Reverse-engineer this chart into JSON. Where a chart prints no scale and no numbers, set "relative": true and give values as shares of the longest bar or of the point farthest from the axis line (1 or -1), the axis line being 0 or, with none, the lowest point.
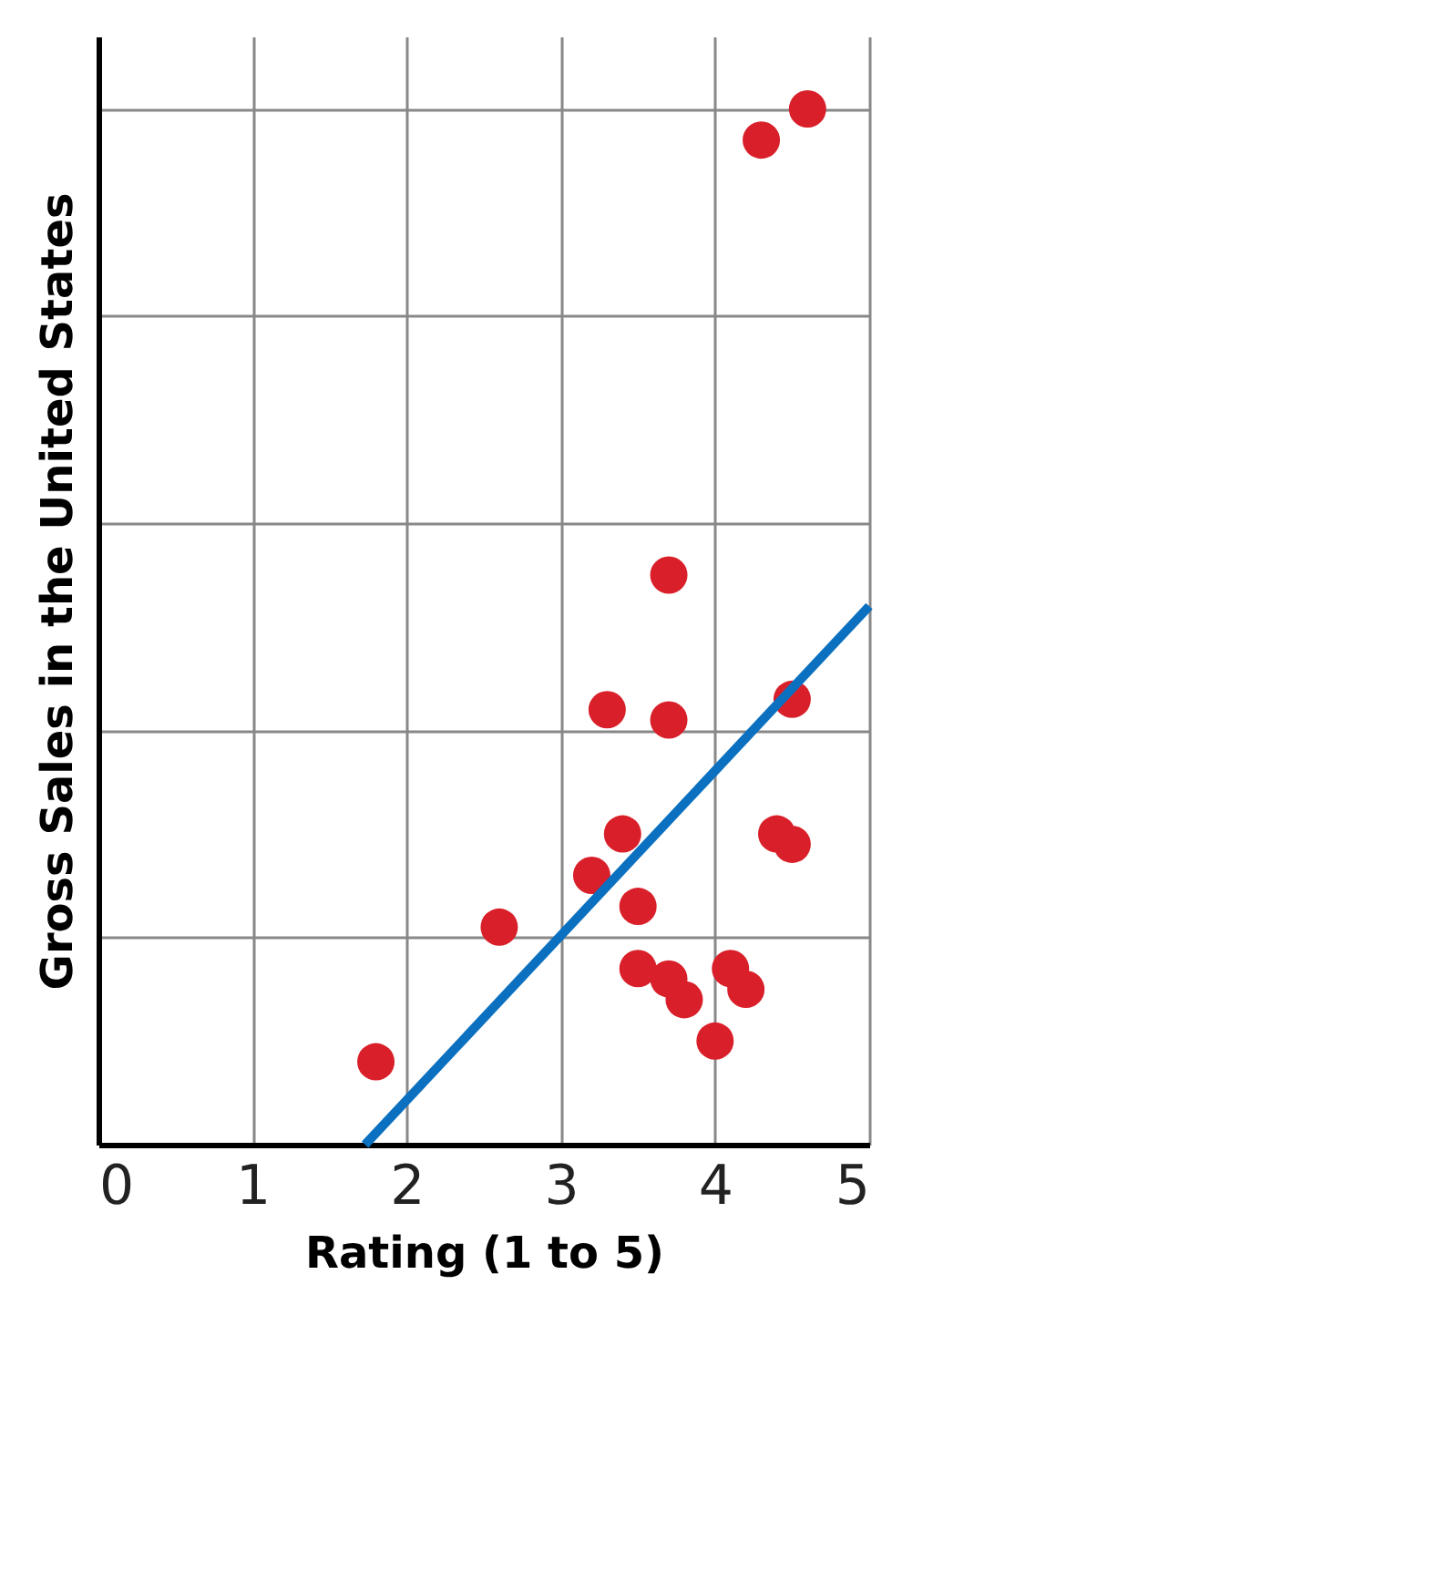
{
  "chart_data": {
    "type": "scatter",
    "relative": true,
    "xlabel": "Rating (1 to 5)",
    "ylabel": "Gross Sales in the United States",
    "xlim": [
      0,
      5
    ],
    "xticks": [
      0,
      1,
      2,
      3,
      4,
      5
    ],
    "grid": true,
    "series": [
      {
        "type": "scatter",
        "marker": "circle",
        "color": "#d9202a",
        "x": [
          1.8,
          2.6,
          3.2,
          3.4,
          3.3,
          3.5,
          3.5,
          3.7,
          3.7,
          3.7,
          3.8,
          4.0,
          4.1,
          4.2,
          4.4,
          4.5,
          4.5,
          4.3,
          4.6
        ],
        "values": [
          0.08,
          0.21,
          0.26,
          0.3,
          0.42,
          0.23,
          0.17,
          0.55,
          0.41,
          0.16,
          0.14,
          0.1,
          0.17,
          0.15,
          0.3,
          0.29,
          0.43,
          0.97,
          1.0
        ]
      },
      {
        "type": "line",
        "color": "#0a70bf",
        "x": [
          1.73,
          5.0
        ],
        "values": [
          0.0,
          0.52
        ],
        "line_style": "solid"
      }
    ]
  }
}
